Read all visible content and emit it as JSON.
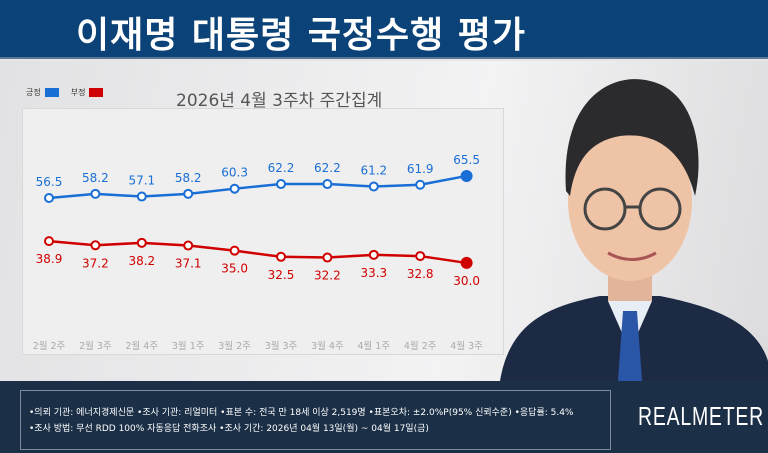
{
  "header": {
    "title": "이재명 대통령 국정수행 평가"
  },
  "chart_data": {
    "type": "line",
    "title": "2026년 4월 3주차 주간집계",
    "categories": [
      "2월 2주",
      "2월 3주",
      "2월 4주",
      "3월 1주",
      "3월 2주",
      "3월 3주",
      "3월 4주",
      "4월 1주",
      "4월 2주",
      "4월 3주"
    ],
    "series": [
      {
        "name": "긍정",
        "color": "#1a6fd6",
        "values": [
          56.5,
          58.2,
          57.1,
          58.2,
          60.3,
          62.2,
          62.2,
          61.2,
          61.9,
          65.5
        ]
      },
      {
        "name": "부정",
        "color": "#d00000",
        "values": [
          38.9,
          37.2,
          38.2,
          37.1,
          35.0,
          32.5,
          32.2,
          33.3,
          32.8,
          30.0
        ]
      }
    ],
    "legend": "top-left",
    "grid": false
  },
  "footer": {
    "line1": "•의뢰 기관: 에너지경제신문 •조사 기관: 리얼미터 •표본 수: 전국 만 18세 이상 2,519명 •표본오차: ±2.0%P(95% 신뢰수준) •응답률: 5.4%",
    "line2": "•조사 방법: 무선 RDD 100% 자동응답 전화조사 •조사 기간: 2026년 04월 13일(월) ~ 04월 17일(금)",
    "logo": "REALMETER"
  }
}
